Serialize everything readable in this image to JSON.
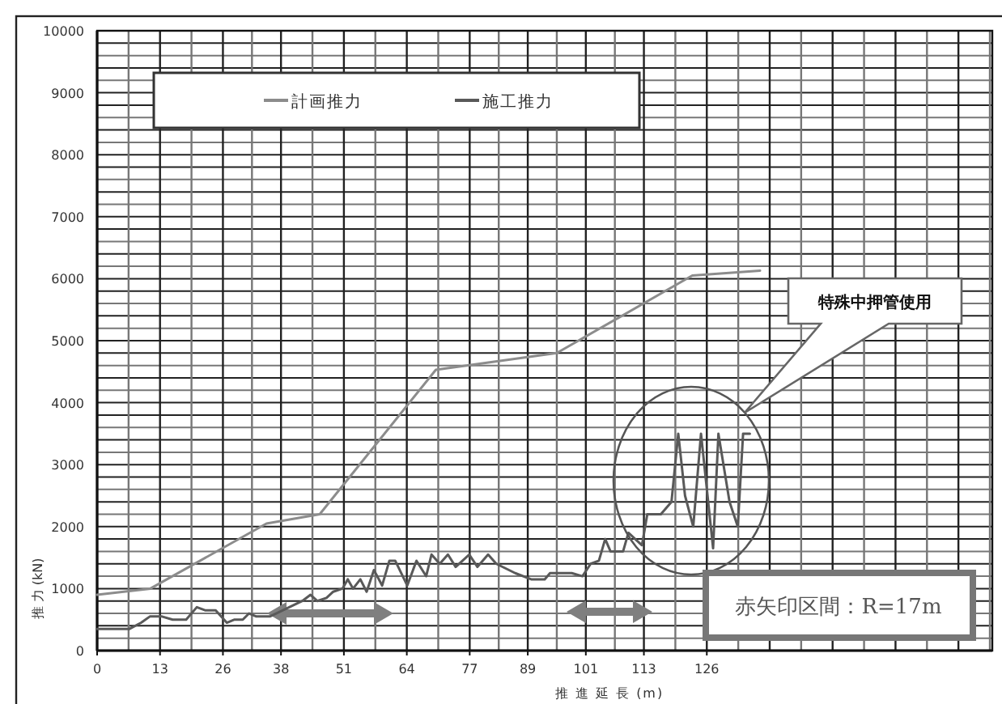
{
  "chart_data": {
    "type": "line",
    "xlabel": "推 進 延 長 (m)",
    "ylabel": "推 力 (kN)",
    "xlim": [
      0,
      185
    ],
    "ylim": [
      0,
      10000
    ],
    "xticks": [
      0,
      13,
      26,
      38,
      51,
      64,
      77,
      89,
      101,
      113,
      126
    ],
    "yticks": [
      0,
      1000,
      2000,
      3000,
      4000,
      5000,
      6000,
      7000,
      8000,
      9000,
      10000
    ],
    "grid": true,
    "legend": "top left",
    "line_style": "solid",
    "marker": "none",
    "series": [
      {
        "name": "計画推力",
        "color": "#8c8c8c",
        "x": [
          0,
          11,
          35,
          46,
          70,
          95,
          123,
          137
        ],
        "values": [
          900,
          1000,
          2050,
          2200,
          4530,
          4800,
          6050,
          6130
        ]
      },
      {
        "name": "施工推力",
        "color": "#595959",
        "x": [
          0,
          6.7,
          9.1,
          10.9,
          13.4,
          15.6,
          18.4,
          20.6,
          22.3,
          24.5,
          26.8,
          28.4,
          30.1,
          31.4,
          32.9,
          35.7,
          42.4,
          44.1,
          45.5,
          47.4,
          48.8,
          50.7,
          51.8,
          52.9,
          54.4,
          55.7,
          57.2,
          58.9,
          60.4,
          61.6,
          64.1,
          66.0,
          68.0,
          69.1,
          70.8,
          72.5,
          74.1,
          76.9,
          78.6,
          80.8,
          82.5,
          86.4,
          89.7,
          92.5,
          93.6,
          98.1,
          100.3,
          102,
          103.7,
          105,
          106.1,
          108.7,
          109.8,
          112.6,
          113.7,
          116.5,
          118.7,
          120.1,
          121.5,
          123.2,
          124.8,
          127.3,
          128.4,
          130.7,
          132.4,
          133.5,
          134.9
        ],
        "values": [
          350,
          350,
          450,
          550,
          550,
          500,
          500,
          700,
          650,
          650,
          450,
          500,
          500,
          600,
          550,
          550,
          800,
          900,
          800,
          850,
          950,
          1000,
          1150,
          1000,
          1150,
          950,
          1300,
          1050,
          1450,
          1450,
          1050,
          1450,
          1200,
          1550,
          1400,
          1550,
          1350,
          1550,
          1350,
          1550,
          1400,
          1250,
          1150,
          1150,
          1250,
          1250,
          1200,
          1400,
          1450,
          1800,
          1600,
          1600,
          1900,
          1700,
          2200,
          2200,
          2400,
          3500,
          2500,
          2000,
          3500,
          1650,
          3500,
          2400,
          2000,
          3500,
          3500
        ]
      }
    ],
    "annotations": [
      "特殊中押管使用",
      "赤矢印区間：R=17m"
    ]
  }
}
